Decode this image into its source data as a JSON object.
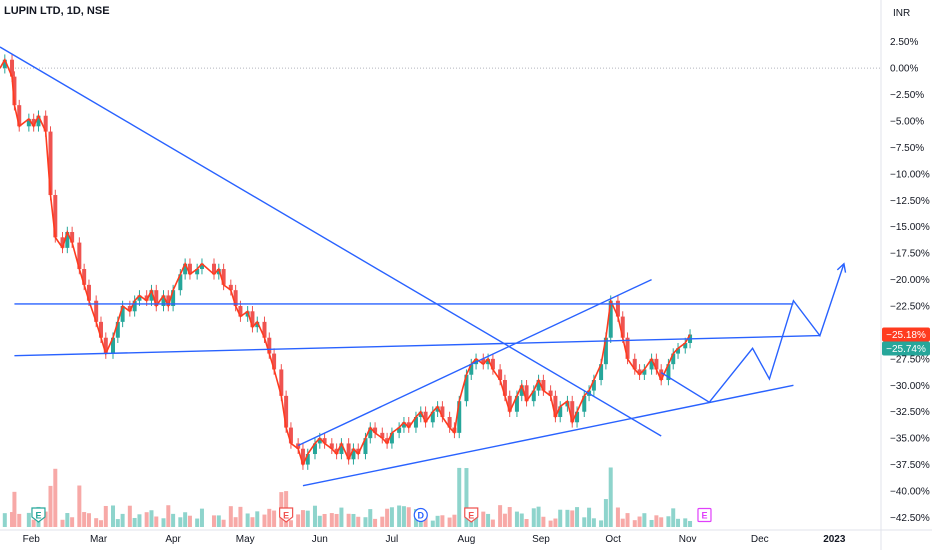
{
  "header": {
    "symbol": "LUPIN LTD, 1D, NSE",
    "currency": "INR"
  },
  "colors": {
    "up": "#26a69a",
    "down": "#ef5350",
    "price_line": "#ff3b1f",
    "trendline": "#2962ff",
    "axis_text": "#131722",
    "gridline": "#b2b5be",
    "volume_up": "#8ed4cc",
    "volume_down": "#f7a9a7",
    "badge_e": "#26a69a",
    "badge_d": "#2962ff",
    "badge_e_red": "#ef5350",
    "badge_future": "#e040fb"
  },
  "chart_data": {
    "type": "line",
    "title": "LUPIN LTD, 1D, NSE",
    "ylabel": "INR",
    "y_scale": "percent change",
    "ylim": [
      -43.5,
      3.8
    ],
    "yticks": [
      2.5,
      0,
      -2.5,
      -5,
      -7.5,
      -10,
      -12.5,
      -15,
      -17.5,
      -20,
      -22.5,
      -25,
      -27.5,
      -30,
      -32.5,
      -35,
      -37.5,
      -40,
      -42.5
    ],
    "ytick_labels": [
      "2.50%",
      "0.00%",
      "−2.50%",
      "−5.00%",
      "−7.50%",
      "−10.00%",
      "−12.50%",
      "−15.00%",
      "−17.50%",
      "−20.00%",
      "−22.50%",
      "−25.00%",
      "−27.50%",
      "−30.00%",
      "−32.50%",
      "−35.00%",
      "−37.50%",
      "−40.00%",
      "−42.50%"
    ],
    "x_labels": [
      "Feb",
      "Mar",
      "Apr",
      "May",
      "Jun",
      "Jul",
      "Aug",
      "Sep",
      "Oct",
      "Nov",
      "Dec",
      "2023"
    ],
    "x_label_dates": [
      "2022-02-01",
      "2022-03-01",
      "2022-04-01",
      "2022-05-01",
      "2022-06-01",
      "2022-07-01",
      "2022-08-01",
      "2022-09-01",
      "2022-10-01",
      "2022-11-01",
      "2022-12-01",
      "2023-01-01"
    ],
    "xlim": [
      "2022-01-19",
      "2023-01-20"
    ],
    "series": [
      {
        "values": [
          [
            "2022-01-19",
            0.0
          ],
          [
            "2022-01-21",
            0.8
          ],
          [
            "2022-01-24",
            -0.8
          ],
          [
            "2022-01-25",
            -3.5
          ],
          [
            "2022-01-27",
            -5.5
          ],
          [
            "2022-01-31",
            -4.8
          ],
          [
            "2022-02-02",
            -5.5
          ],
          [
            "2022-02-04",
            -4.5
          ],
          [
            "2022-02-07",
            -6.0
          ],
          [
            "2022-02-09",
            -12.0
          ],
          [
            "2022-02-11",
            -16.0
          ],
          [
            "2022-02-14",
            -17.0
          ],
          [
            "2022-02-16",
            -15.5
          ],
          [
            "2022-02-18",
            -16.5
          ],
          [
            "2022-02-21",
            -19.0
          ],
          [
            "2022-02-23",
            -20.5
          ],
          [
            "2022-02-25",
            -22.0
          ],
          [
            "2022-02-28",
            -24.0
          ],
          [
            "2022-03-02",
            -25.5
          ],
          [
            "2022-03-04",
            -27.0
          ],
          [
            "2022-03-07",
            -25.5
          ],
          [
            "2022-03-09",
            -24.0
          ],
          [
            "2022-03-11",
            -22.5
          ],
          [
            "2022-03-14",
            -23.0
          ],
          [
            "2022-03-16",
            -22.0
          ],
          [
            "2022-03-18",
            -21.5
          ],
          [
            "2022-03-21",
            -22.0
          ],
          [
            "2022-03-23",
            -21.0
          ],
          [
            "2022-03-25",
            -22.5
          ],
          [
            "2022-03-28",
            -21.5
          ],
          [
            "2022-03-30",
            -22.5
          ],
          [
            "2022-04-01",
            -21.0
          ],
          [
            "2022-04-04",
            -19.5
          ],
          [
            "2022-04-06",
            -18.5
          ],
          [
            "2022-04-08",
            -19.5
          ],
          [
            "2022-04-11",
            -19.0
          ],
          [
            "2022-04-13",
            -18.5
          ],
          [
            "2022-04-18",
            -19.5
          ],
          [
            "2022-04-20",
            -19.0
          ],
          [
            "2022-04-22",
            -20.5
          ],
          [
            "2022-04-25",
            -21.0
          ],
          [
            "2022-04-27",
            -22.5
          ],
          [
            "2022-04-29",
            -23.5
          ],
          [
            "2022-05-02",
            -23.0
          ],
          [
            "2022-05-04",
            -24.5
          ],
          [
            "2022-05-06",
            -24.0
          ],
          [
            "2022-05-09",
            -25.5
          ],
          [
            "2022-05-11",
            -27.0
          ],
          [
            "2022-05-13",
            -28.5
          ],
          [
            "2022-05-16",
            -31.0
          ],
          [
            "2022-05-18",
            -34.0
          ],
          [
            "2022-05-20",
            -35.5
          ],
          [
            "2022-05-23",
            -36.0
          ],
          [
            "2022-05-25",
            -37.5
          ],
          [
            "2022-05-27",
            -36.5
          ],
          [
            "2022-05-30",
            -35.5
          ],
          [
            "2022-06-01",
            -35.0
          ],
          [
            "2022-06-03",
            -35.5
          ],
          [
            "2022-06-06",
            -36.0
          ],
          [
            "2022-06-08",
            -36.5
          ],
          [
            "2022-06-10",
            -35.5
          ],
          [
            "2022-06-13",
            -37.0
          ],
          [
            "2022-06-15",
            -36.0
          ],
          [
            "2022-06-17",
            -36.5
          ],
          [
            "2022-06-20",
            -35.0
          ],
          [
            "2022-06-22",
            -34.0
          ],
          [
            "2022-06-24",
            -34.5
          ],
          [
            "2022-06-27",
            -35.0
          ],
          [
            "2022-06-29",
            -35.5
          ],
          [
            "2022-07-01",
            -34.5
          ],
          [
            "2022-07-04",
            -34.0
          ],
          [
            "2022-07-06",
            -33.5
          ],
          [
            "2022-07-08",
            -34.0
          ],
          [
            "2022-07-11",
            -33.0
          ],
          [
            "2022-07-13",
            -32.5
          ],
          [
            "2022-07-15",
            -33.5
          ],
          [
            "2022-07-18",
            -32.5
          ],
          [
            "2022-07-20",
            -32.0
          ],
          [
            "2022-07-22",
            -33.0
          ],
          [
            "2022-07-25",
            -34.0
          ],
          [
            "2022-07-27",
            -34.5
          ],
          [
            "2022-07-29",
            -31.5
          ],
          [
            "2022-08-01",
            -29.0
          ],
          [
            "2022-08-03",
            -28.0
          ],
          [
            "2022-08-05",
            -27.5
          ],
          [
            "2022-08-08",
            -28.0
          ],
          [
            "2022-08-10",
            -27.5
          ],
          [
            "2022-08-12",
            -28.5
          ],
          [
            "2022-08-15",
            -29.5
          ],
          [
            "2022-08-17",
            -31.0
          ],
          [
            "2022-08-19",
            -32.5
          ],
          [
            "2022-08-22",
            -31.0
          ],
          [
            "2022-08-24",
            -30.0
          ],
          [
            "2022-08-26",
            -31.5
          ],
          [
            "2022-08-29",
            -30.5
          ],
          [
            "2022-08-31",
            -29.5
          ],
          [
            "2022-09-02",
            -30.5
          ],
          [
            "2022-09-05",
            -31.0
          ],
          [
            "2022-09-07",
            -33.0
          ],
          [
            "2022-09-09",
            -32.0
          ],
          [
            "2022-09-12",
            -31.5
          ],
          [
            "2022-09-14",
            -33.5
          ],
          [
            "2022-09-16",
            -32.5
          ],
          [
            "2022-09-19",
            -31.0
          ],
          [
            "2022-09-21",
            -30.5
          ],
          [
            "2022-09-23",
            -29.5
          ],
          [
            "2022-09-26",
            -28.0
          ],
          [
            "2022-09-28",
            -25.5
          ],
          [
            "2022-09-30",
            -22.0
          ],
          [
            "2022-10-03",
            -23.5
          ],
          [
            "2022-10-05",
            -25.5
          ],
          [
            "2022-10-07",
            -27.5
          ],
          [
            "2022-10-10",
            -28.5
          ],
          [
            "2022-10-12",
            -29.0
          ],
          [
            "2022-10-14",
            -28.5
          ],
          [
            "2022-10-17",
            -27.5
          ],
          [
            "2022-10-19",
            -28.5
          ],
          [
            "2022-10-21",
            -29.5
          ],
          [
            "2022-10-24",
            -28.0
          ],
          [
            "2022-10-26",
            -27.0
          ],
          [
            "2022-10-28",
            -26.5
          ],
          [
            "2022-10-31",
            -26.0
          ],
          [
            "2022-11-02",
            -25.2
          ]
        ]
      }
    ],
    "last_value_labels": [
      "−25.18%",
      "−25.74%"
    ],
    "reference_line_value": 0,
    "drawings": [
      {
        "kind": "trendline",
        "points": [
          [
            "2022-01-19",
            2.0
          ],
          [
            "2022-10-21",
            -34.8
          ]
        ]
      },
      {
        "kind": "trendline",
        "points": [
          [
            "2022-01-25",
            -22.3
          ],
          [
            "2022-12-15",
            -22.3
          ]
        ]
      },
      {
        "kind": "trendline",
        "points": [
          [
            "2022-01-25",
            -27.2
          ],
          [
            "2022-12-26",
            -25.3
          ]
        ]
      },
      {
        "kind": "trendline",
        "points": [
          [
            "2022-05-23",
            -35.7
          ],
          [
            "2022-10-17",
            -20.0
          ]
        ]
      },
      {
        "kind": "trendline",
        "points": [
          [
            "2022-05-25",
            -39.5
          ],
          [
            "2022-12-15",
            -30.0
          ]
        ]
      },
      {
        "kind": "projection",
        "points": [
          [
            "2022-10-21",
            -28.8
          ],
          [
            "2022-11-10",
            -31.6
          ],
          [
            "2022-11-28",
            -26.5
          ],
          [
            "2022-12-05",
            -29.4
          ],
          [
            "2022-12-15",
            -22.0
          ],
          [
            "2022-12-26",
            -25.3
          ],
          [
            "2023-01-05",
            -18.5
          ]
        ]
      }
    ]
  },
  "events": [
    {
      "label": "E",
      "date": "2022-02-04",
      "style": "earnings"
    },
    {
      "label": "E",
      "date": "2022-05-18",
      "style": "earnings_red"
    },
    {
      "label": "D",
      "date": "2022-07-13",
      "style": "dividend"
    },
    {
      "label": "E",
      "date": "2022-08-03",
      "style": "earnings_red"
    },
    {
      "label": "E",
      "date": "2022-11-08",
      "style": "future"
    }
  ]
}
